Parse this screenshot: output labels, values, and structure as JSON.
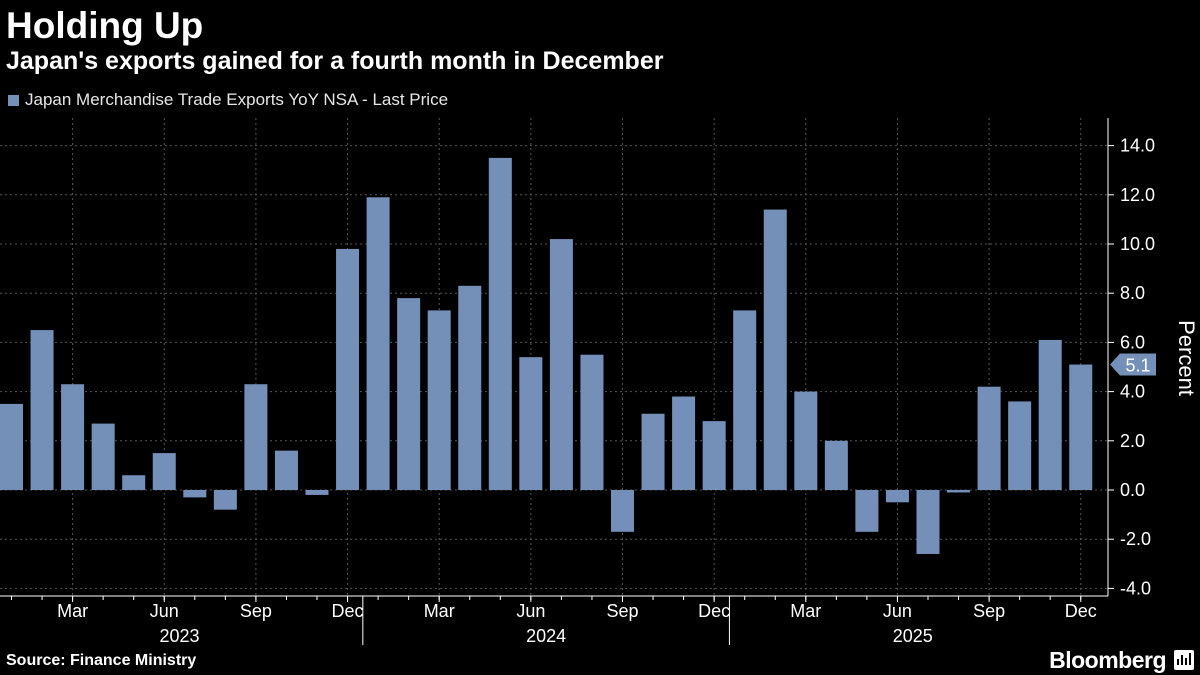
{
  "header": {
    "title": "Holding Up",
    "subtitle": "Japan's exports gained for a fourth month in December",
    "legend_label": "Japan Merchandise Trade Exports YoY NSA - Last Price"
  },
  "footer": {
    "source": "Source: Finance Ministry",
    "brand": "Bloomberg"
  },
  "colors": {
    "bar": "#7590b8",
    "background": "#000000",
    "text": "#ffffff",
    "grid": "#555555"
  },
  "chart_data": {
    "type": "bar",
    "categories": [
      "Jan 2023",
      "Feb 2023",
      "Mar 2023",
      "Apr 2023",
      "May 2023",
      "Jun 2023",
      "Jul 2023",
      "Aug 2023",
      "Sep 2023",
      "Oct 2023",
      "Nov 2023",
      "Dec 2023",
      "Jan 2024",
      "Feb 2024",
      "Mar 2024",
      "Apr 2024",
      "May 2024",
      "Jun 2024",
      "Jul 2024",
      "Aug 2024",
      "Sep 2024",
      "Oct 2024",
      "Nov 2024",
      "Dec 2024",
      "Jan 2025",
      "Feb 2025",
      "Mar 2025",
      "Apr 2025",
      "May 2025",
      "Jun 2025",
      "Jul 2025",
      "Aug 2025",
      "Sep 2025",
      "Oct 2025",
      "Nov 2025",
      "Dec 2025"
    ],
    "series": [
      {
        "name": "Japan Merchandise Trade Exports YoY NSA - Last Price",
        "values": [
          3.5,
          6.5,
          4.3,
          2.7,
          0.6,
          1.5,
          -0.3,
          -0.8,
          4.3,
          1.6,
          -0.2,
          9.8,
          11.9,
          7.8,
          7.3,
          8.3,
          13.5,
          5.4,
          10.2,
          5.5,
          -1.7,
          3.1,
          3.8,
          2.8,
          7.3,
          11.4,
          4.0,
          2.0,
          -1.7,
          -0.5,
          -2.6,
          -0.1,
          4.2,
          3.6,
          6.1,
          5.1
        ]
      }
    ],
    "ylabel": "Percent",
    "ylim": [
      -4.5,
      14.8
    ],
    "yticks": [
      "14.0",
      "12.0",
      "10.0",
      "8.0",
      "6.0",
      "4.0",
      "2.0",
      "0.0",
      "-2.0",
      "-4.0"
    ],
    "x_month_labels": [
      "Mar",
      "Jun",
      "Sep",
      "Dec",
      "Mar",
      "Jun",
      "Sep",
      "Dec",
      "Mar",
      "Jun",
      "Sep",
      "Dec"
    ],
    "x_year_labels": [
      "2023",
      "2024",
      "2025"
    ],
    "last_value_label": "5.1",
    "grid": true,
    "legend_position": "top-left"
  }
}
